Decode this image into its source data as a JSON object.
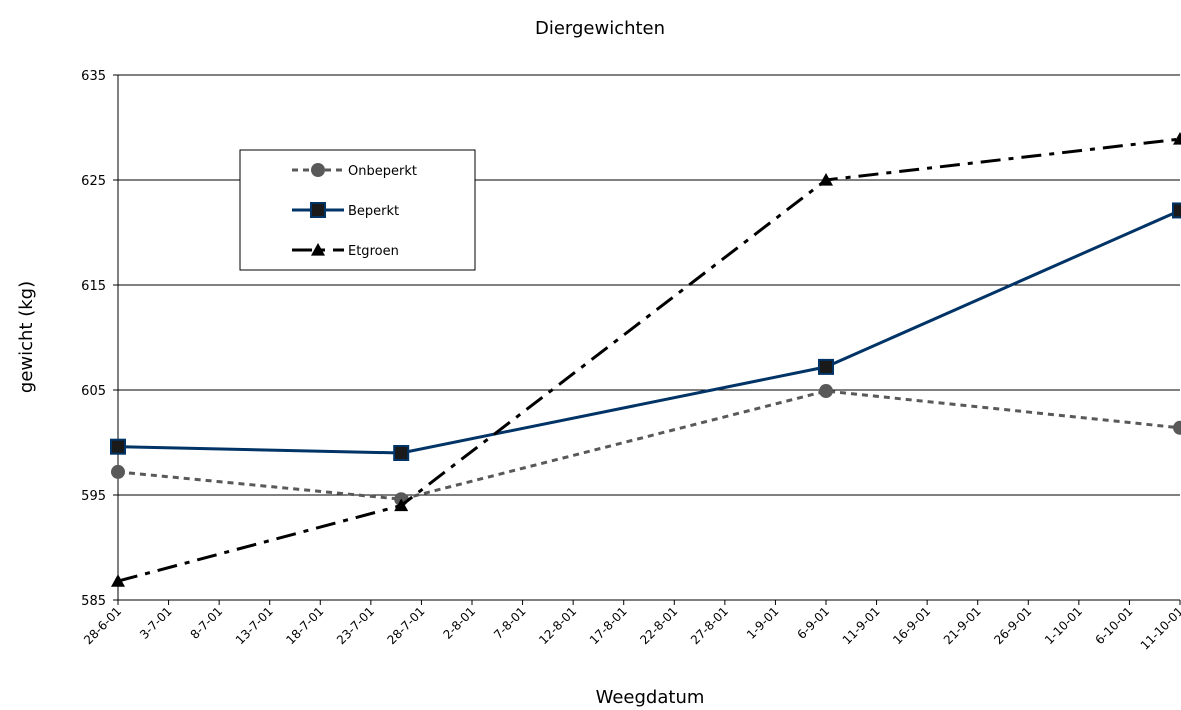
{
  "chart_data": {
    "type": "line",
    "title": "Diergewichten",
    "x_label": "Weegdatum",
    "y_label": "gewicht (kg)",
    "x": [
      "28-6-01",
      "26-7-01",
      "6-9-01",
      "11-10-01"
    ],
    "xlim": [
      "28-6-01",
      "11-10-01"
    ],
    "xticks": [
      "28-6-01",
      "3-7-01",
      "8-7-01",
      "13-7-01",
      "18-7-01",
      "23-7-01",
      "28-7-01",
      "2-8-01",
      "7-8-01",
      "12-8-01",
      "17-8-01",
      "22-8-01",
      "27-8-01",
      "1-9-01",
      "6-9-01",
      "11-9-01",
      "16-9-01",
      "21-9-01",
      "26-9-01",
      "1-10-01",
      "6-10-01",
      "11-10-01"
    ],
    "ylim": [
      585,
      635
    ],
    "yticks": [
      585,
      595,
      605,
      615,
      625,
      635
    ],
    "grid": true,
    "series": [
      {
        "name": "Onbeperkt",
        "color": "#595959",
        "marker": "circle",
        "values": [
          597.2,
          594.6,
          604.9,
          601.4
        ]
      },
      {
        "name": "Beperkt",
        "color": "#003366",
        "marker": "square",
        "values": [
          599.6,
          599.0,
          607.2,
          622.1
        ]
      },
      {
        "name": "Etgroen",
        "color": "#000000",
        "marker": "triangle",
        "values": [
          586.8,
          594.0,
          625.0,
          628.9
        ]
      }
    ]
  }
}
